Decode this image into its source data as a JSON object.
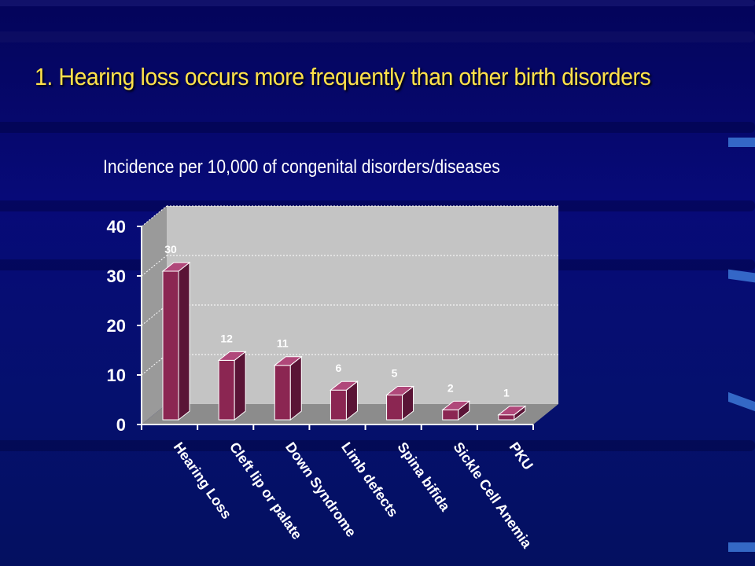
{
  "slide": {
    "title": "1. Hearing loss occurs more frequently than other birth disorders",
    "subtitle": "Incidence per 10,000 of congenital disorders/diseases"
  },
  "chart_data": {
    "type": "bar",
    "title": "",
    "xlabel": "",
    "ylabel": "",
    "categories": [
      "Hearing Loss",
      "Cleft lip or palate",
      "Down Syndrome",
      "Limb defects",
      "Spina bifida",
      "Sickle Cell Anemia",
      "PKU"
    ],
    "values": [
      30,
      12,
      11,
      6,
      5,
      2,
      1
    ],
    "ylim": [
      0,
      40
    ],
    "yticks": [
      0,
      10,
      20,
      30,
      40
    ],
    "grid": true,
    "style": "3d",
    "colors": {
      "bar_front": "#8b2652",
      "bar_side": "#5a1436",
      "bar_top": "#b0487a",
      "wall": "#c4c4c4",
      "floor": "#8c8c8c",
      "axis_text": "#ffffff"
    }
  }
}
